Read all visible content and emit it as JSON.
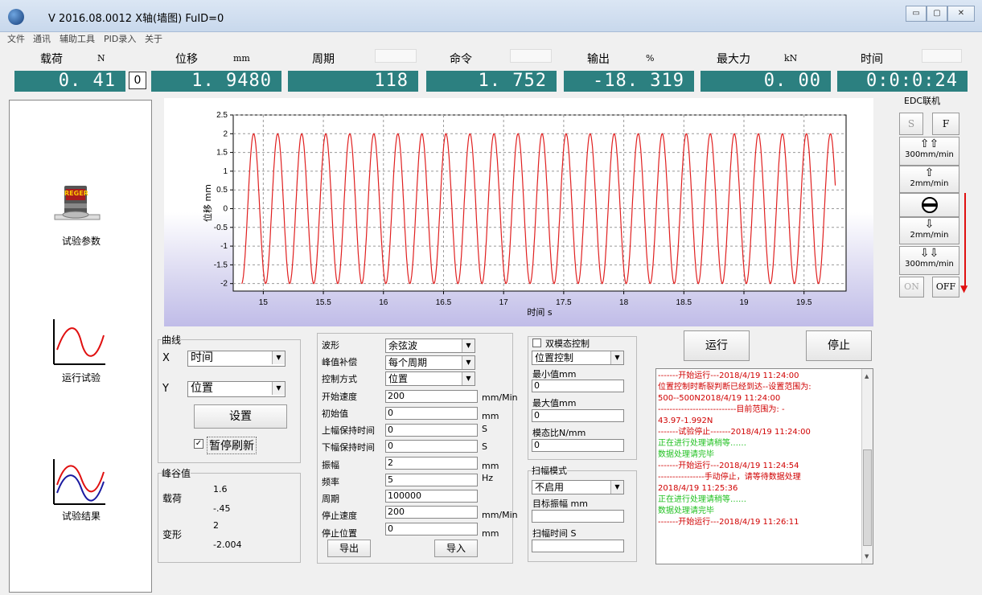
{
  "window": {
    "title": "V 2016.08.0012   X轴(墙图)   FuID=0",
    "controls": [
      "▭",
      "▢",
      "✕"
    ]
  },
  "menu": [
    "文件",
    "通讯",
    "辅助工具",
    "PID录入",
    "关于"
  ],
  "readouts": [
    {
      "label": "载荷",
      "unit": "N",
      "value": "0. 41"
    },
    {
      "label": "位移",
      "unit": "mm",
      "value": "1. 9480"
    },
    {
      "label": "周期",
      "unit": "",
      "value": "118"
    },
    {
      "label": "命令",
      "unit": "",
      "value": "1. 752"
    },
    {
      "label": "输出",
      "unit": "%",
      "value": "-18. 319"
    },
    {
      "label": "最大力",
      "unit": "kN",
      "value": "0. 00"
    },
    {
      "label": "时间",
      "unit": "",
      "value": "0:0:0:24"
    }
  ],
  "zero_button": "0",
  "sidebar": {
    "items": [
      {
        "label": "试验参数",
        "icon": "test-params-icon",
        "badge": "REGER"
      },
      {
        "label": "运行试验",
        "icon": "run-test-icon"
      },
      {
        "label": "试验结果",
        "icon": "test-result-icon"
      }
    ]
  },
  "chart_data": {
    "type": "line",
    "xlabel": "时间 s",
    "ylabel": "位移 mm",
    "xlim": [
      14.75,
      19.85
    ],
    "ylim": [
      -2.2,
      2.5
    ],
    "xticks": [
      15,
      15.5,
      16,
      16.5,
      17,
      17.5,
      18,
      18.5,
      19,
      19.5
    ],
    "yticks": [
      2.5,
      2,
      1.5,
      1,
      0.5,
      0,
      -0.5,
      -1,
      -1.5,
      -2
    ],
    "grid": true,
    "series": [
      {
        "color": "#e02020",
        "waveform": "cosine",
        "amplitude": 2,
        "frequency_hz": 5,
        "x_start": 14.82,
        "x_end": 19.76
      }
    ]
  },
  "curve_group": {
    "legend": "曲线",
    "x_label": "X",
    "x_value": "时间",
    "y_label": "Y",
    "y_value": "位置",
    "set_button": "设置",
    "pause_label": "暂停刷新",
    "pause_checked": true
  },
  "peak_group": {
    "legend": "峰谷值",
    "load_label": "载荷",
    "load_max": "1.6",
    "load_min": "-.45",
    "deform_label": "变形",
    "deform_max": "2",
    "deform_min": "-2.004"
  },
  "params": {
    "waveform_label": "波形",
    "waveform_value": "余弦波",
    "peak_comp_label": "峰值补偿",
    "peak_comp_value": "每个周期",
    "control_label": "控制方式",
    "control_value": "位置",
    "start_speed_label": "开始速度",
    "start_speed_value": "200",
    "start_speed_unit": "mm/Min",
    "initial_label": "初始值",
    "initial_value": "0",
    "initial_unit": "mm",
    "upper_hold_label": "上幅保持时间",
    "upper_hold_value": "0",
    "upper_hold_unit": "S",
    "lower_hold_label": "下幅保持时间",
    "lower_hold_value": "0",
    "lower_hold_unit": "S",
    "amplitude_label": "振幅",
    "amplitude_value": "2",
    "amplitude_unit": "mm",
    "frequency_label": "频率",
    "frequency_value": "5",
    "frequency_unit": "Hz",
    "period_label": "周期",
    "period_value": "100000",
    "stop_speed_label": "停止速度",
    "stop_speed_value": "200",
    "stop_speed_unit": "mm/Min",
    "stop_pos_label": "停止位置",
    "stop_pos_value": "0",
    "stop_pos_unit": "mm",
    "export_button": "导出",
    "import_button": "导入"
  },
  "dual_mode": {
    "legend": "双模态控制",
    "checked": false,
    "mode_value": "位置控制",
    "min_label": "最小值mm",
    "min_value": "0",
    "max_label": "最大值mm",
    "max_value": "0",
    "ratio_label": "模态比N/mm",
    "ratio_value": "0"
  },
  "sweep": {
    "legend": "扫幅模式",
    "mode_value": "不启用",
    "target_label": "目标振幅  mm",
    "target_value": "",
    "time_label": "扫幅时间   S",
    "time_value": ""
  },
  "run_button": "运行",
  "stop_button": "停止",
  "log": [
    {
      "text": "   -------开始运行---2018/4/19 11:24:00",
      "color": "#d00000"
    },
    {
      "text": " 位置控制时断裂判断已经到达--设置范围为:",
      "color": "#d00000"
    },
    {
      "text": "500--500N2018/4/19 11:24:00",
      "color": "#d00000"
    },
    {
      "text": "   ---------------------------目前范围为: -",
      "color": "#d00000"
    },
    {
      "text": "43.97-1.992N",
      "color": "#d00000"
    },
    {
      "text": "   -------试验停止-------2018/4/19 11:24:00",
      "color": "#d00000"
    },
    {
      "text": "正在进行处理请稍等……",
      "color": "#20c020"
    },
    {
      "text": "数据处理请完毕",
      "color": "#20c020"
    },
    {
      "text": "   -------开始运行---2018/4/19 11:24:54",
      "color": "#d00000"
    },
    {
      "text": "----------------手动停止，请等待数据处理",
      "color": "#d00000"
    },
    {
      "text": "2018/4/19 11:25:36",
      "color": "#d00000"
    },
    {
      "text": "正在进行处理请稍等……",
      "color": "#20c020"
    },
    {
      "text": "数据处理请完毕",
      "color": "#20c020"
    },
    {
      "text": "   -------开始运行---2018/4/19 11:26:11",
      "color": "#d00000"
    }
  ],
  "edc": {
    "title": "EDC联机",
    "s_button": "S",
    "f_button": "F",
    "up_fast": "300mm/min",
    "up_slow": "2mm/min",
    "down_slow": "2mm/min",
    "down_fast": "300mm/min",
    "on_button": "ON",
    "off_button": "OFF"
  }
}
